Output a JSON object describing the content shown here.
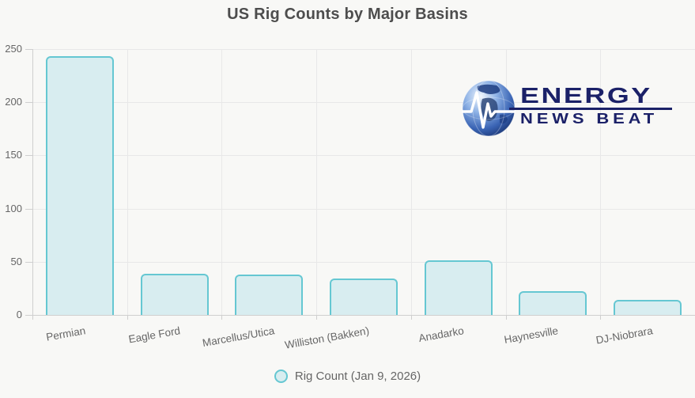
{
  "page": {
    "background": "#f8f8f6"
  },
  "chart_data": {
    "type": "bar",
    "title": "US Rig Counts by Major Basins",
    "categories": [
      "Permian",
      "Eagle Ford",
      "Marcellus/Utica",
      "Williston (Bakken)",
      "Anadarko",
      "Haynesville",
      "DJ-Niobrara"
    ],
    "values": [
      243,
      39,
      38,
      34,
      51,
      22,
      14
    ],
    "series": [
      {
        "name": "Rig Count (Jan 9, 2026)",
        "values": [
          243,
          39,
          38,
          34,
          51,
          22,
          14
        ]
      }
    ],
    "xlabel": "",
    "ylabel": "",
    "ylim": [
      0,
      250
    ],
    "yticks": [
      0,
      50,
      100,
      150,
      200,
      250
    ],
    "grid": true,
    "legend_position": "bottom",
    "bar_fill": "#d8edf0",
    "bar_stroke": "#65c7d2",
    "grid_color": "#e8e8e8",
    "axis_color": "#cfcfcf",
    "label_color": "#666666",
    "title_color": "#4d4d4d"
  },
  "legend": {
    "label": "Rig Count (Jan 9, 2026)",
    "marker": "circle-marker-icon"
  },
  "logo": {
    "line1": "ENERGY",
    "line2": "NEWS BEAT",
    "color": "#1b2168",
    "icon": "globe-pulse-icon"
  }
}
